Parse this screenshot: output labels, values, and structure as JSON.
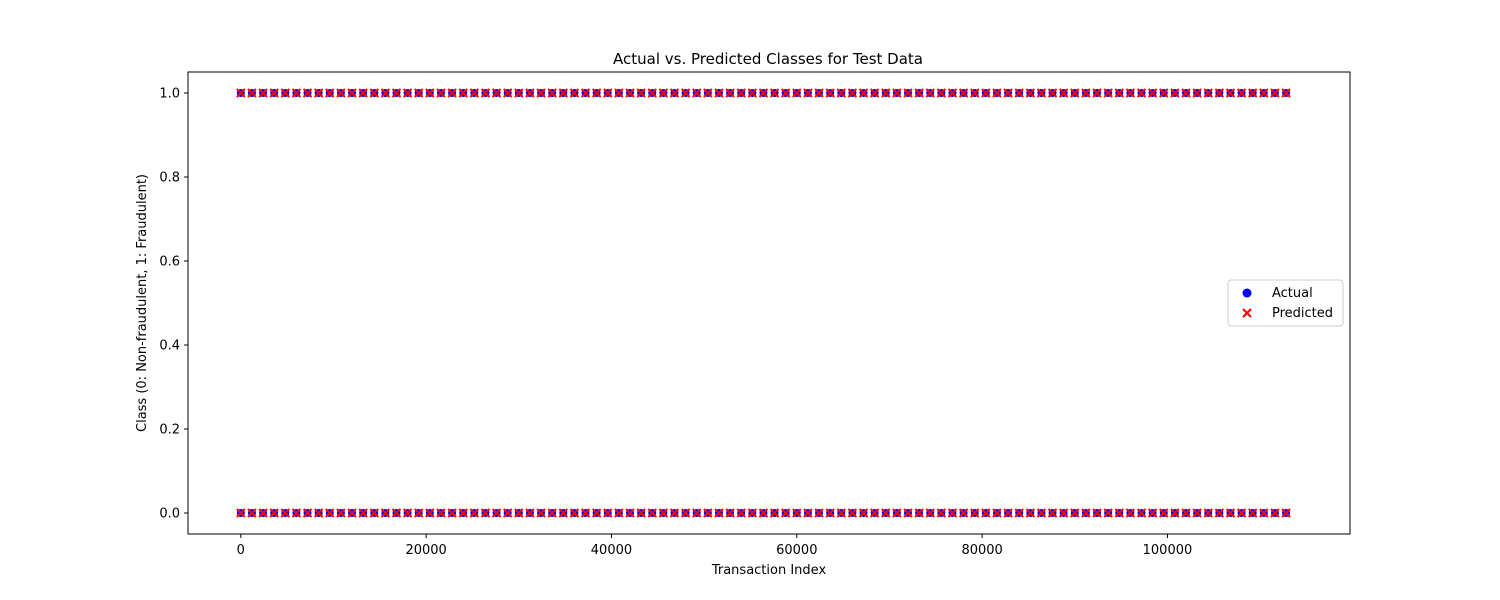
{
  "chart_data": {
    "type": "scatter",
    "title": "Actual vs. Predicted Classes for Test Data",
    "xlabel": "Transaction Index",
    "ylabel": "Class (0: Non-fraudulent, 1: Fraudulent)",
    "xlim": [
      -5700,
      119700
    ],
    "ylim": [
      -0.05,
      1.05
    ],
    "x_ticks": [
      0,
      20000,
      40000,
      60000,
      80000,
      100000
    ],
    "x_tick_labels": [
      "0",
      "20000",
      "40000",
      "60000",
      "80000",
      "100000"
    ],
    "y_ticks": [
      0.0,
      0.2,
      0.4,
      0.6,
      0.8,
      1.0
    ],
    "y_tick_labels": [
      "0.0",
      "0.2",
      "0.4",
      "0.6",
      "0.8",
      "1.0"
    ],
    "x_range": [
      0,
      113900
    ],
    "classes": [
      0,
      1
    ],
    "grid": false,
    "legend_position": "center-right",
    "series": [
      {
        "name": "Actual",
        "marker": "circle",
        "color": "#0000ff",
        "x_range": [
          0,
          113900
        ],
        "values": [
          0,
          1
        ]
      },
      {
        "name": "Predicted",
        "marker": "x",
        "color": "#ff0000",
        "x_range": [
          0,
          113900
        ],
        "values": [
          0,
          1
        ]
      }
    ]
  }
}
